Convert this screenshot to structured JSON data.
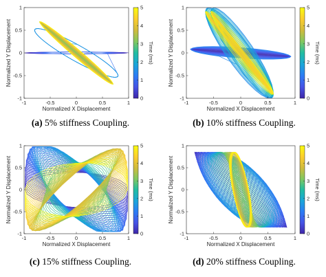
{
  "chart_data": [
    {
      "type": "line",
      "panel_label": "(a)",
      "caption": "5% stiffness Coupling.",
      "xlabel": "Normalized X Displacement",
      "ylabel": "Normalized Y Displacement",
      "xlim": [
        -1,
        1
      ],
      "ylim": [
        -1,
        1
      ],
      "xticks": [
        "-1",
        "-0.5",
        "0",
        "0.5",
        "1"
      ],
      "yticks": [
        "-1",
        "-0.5",
        "0",
        "0.5",
        "1"
      ],
      "colorbar": {
        "label": "Time (ms)",
        "ticks": [
          "0",
          "1",
          "2",
          "3",
          "4",
          "5"
        ],
        "range": [
          0,
          5
        ]
      },
      "coupling": 0.05
    },
    {
      "type": "line",
      "panel_label": "(b)",
      "caption": "10% stiffness Coupling.",
      "xlabel": "Normalized X Displacement",
      "ylabel": "Normalized Y Displacement",
      "xlim": [
        -1,
        1
      ],
      "ylim": [
        -1,
        1
      ],
      "xticks": [
        "-1",
        "-0.5",
        "0",
        "0.5",
        "1"
      ],
      "yticks": [
        "-1",
        "-0.5",
        "0",
        "0.5",
        "1"
      ],
      "colorbar": {
        "label": "Time (ms)",
        "ticks": [
          "0",
          "1",
          "2",
          "3",
          "4",
          "5"
        ],
        "range": [
          0,
          5
        ]
      },
      "coupling": 0.1
    },
    {
      "type": "line",
      "panel_label": "(c)",
      "caption": "15% stiffness Coupling.",
      "xlabel": "Normalized X Displacement",
      "ylabel": "Normalized Y Displacement",
      "xlim": [
        -1,
        1
      ],
      "ylim": [
        -1,
        1
      ],
      "xticks": [
        "-1",
        "-0.5",
        "0",
        "0.5",
        "1"
      ],
      "yticks": [
        "-1",
        "-0.5",
        "0",
        "0.5",
        "1"
      ],
      "colorbar": {
        "label": "Time (ms)",
        "ticks": [
          "0",
          "1",
          "2",
          "3",
          "4",
          "5"
        ],
        "range": [
          0,
          5
        ]
      },
      "coupling": 0.15
    },
    {
      "type": "line",
      "panel_label": "(d)",
      "caption": "20% stiffness Coupling.",
      "xlabel": "Normalized X Displacement",
      "ylabel": "Normalized Y Displacement",
      "xlim": [
        -1,
        1
      ],
      "ylim": [
        -1,
        1
      ],
      "xticks": [
        "-1",
        "-0.5",
        "0",
        "0.5",
        "1"
      ],
      "yticks": [
        "-1",
        "-0.5",
        "0",
        "0.5",
        "1"
      ],
      "colorbar": {
        "label": "Time (ms)",
        "ticks": [
          "0",
          "1",
          "2",
          "3",
          "4",
          "5"
        ],
        "range": [
          0,
          5
        ]
      },
      "coupling": 0.2
    }
  ],
  "colormap": [
    "#3e26a8",
    "#4653e6",
    "#2c7cf5",
    "#1aa6d9",
    "#21bda2",
    "#82c85f",
    "#d1bb3c",
    "#fcce2e",
    "#f9fb0e"
  ]
}
